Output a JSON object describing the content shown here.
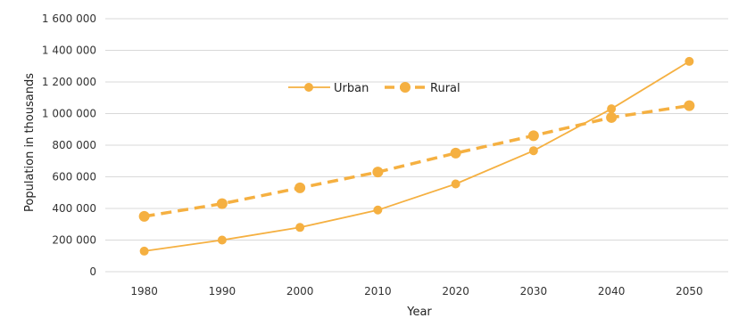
{
  "chart_data": {
    "type": "line",
    "categories": [
      "1980",
      "1990",
      "2000",
      "2010",
      "2020",
      "2030",
      "2040",
      "2050"
    ],
    "series": [
      {
        "name": "Urban",
        "values": [
          130000,
          200000,
          280000,
          390000,
          555000,
          765000,
          1030000,
          1330000
        ],
        "color": "#f5b041",
        "dash": "solid"
      },
      {
        "name": "Rural",
        "values": [
          350000,
          430000,
          530000,
          630000,
          750000,
          860000,
          975000,
          1050000
        ],
        "color": "#f5b041",
        "dash": "dashed"
      }
    ],
    "y_ticks": [
      "0",
      "200 000",
      "400 000",
      "600 000",
      "800 000",
      "1 000 000",
      "1 200 000",
      "1 400 000",
      "1 600 000"
    ],
    "ylim": [
      0,
      1600000
    ],
    "xlabel": "Year",
    "ylabel": "Population in thousands",
    "grid": true,
    "legend_position": "top-center"
  }
}
